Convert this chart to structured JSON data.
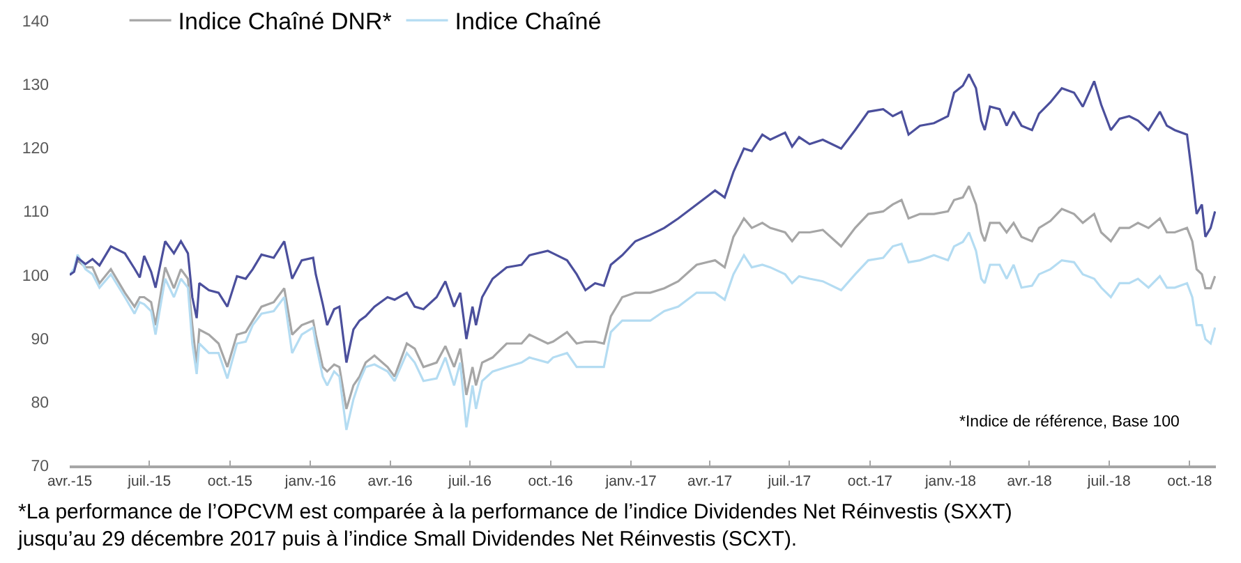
{
  "chart_data": {
    "type": "line",
    "x": [
      "2015-04-01",
      "2015-04-06",
      "2015-04-10",
      "2015-04-19",
      "2015-04-27",
      "2015-05-05",
      "2015-05-18",
      "2015-06-03",
      "2015-06-14",
      "2015-06-20",
      "2015-06-25",
      "2015-07-03",
      "2015-07-08",
      "2015-07-19",
      "2015-07-29",
      "2015-08-06",
      "2015-08-14",
      "2015-08-19",
      "2015-08-24",
      "2015-08-27",
      "2015-09-07",
      "2015-09-18",
      "2015-09-28",
      "2015-10-09",
      "2015-10-19",
      "2015-10-27",
      "2015-11-06",
      "2015-11-20",
      "2015-12-02",
      "2015-12-11",
      "2015-12-22",
      "2016-01-04",
      "2016-01-07",
      "2016-01-15",
      "2016-01-20",
      "2016-01-28",
      "2016-02-03",
      "2016-02-11",
      "2016-02-19",
      "2016-02-26",
      "2016-03-04",
      "2016-03-14",
      "2016-03-29",
      "2016-04-06",
      "2016-04-20",
      "2016-04-29",
      "2016-05-09",
      "2016-05-24",
      "2016-06-03",
      "2016-06-13",
      "2016-06-20",
      "2016-06-27",
      "2016-07-04",
      "2016-07-08",
      "2016-07-15",
      "2016-07-27",
      "2016-08-12",
      "2016-08-29",
      "2016-09-07",
      "2016-09-28",
      "2016-10-04",
      "2016-10-20",
      "2016-10-31",
      "2016-11-10",
      "2016-11-21",
      "2016-12-01",
      "2016-12-09",
      "2016-12-22",
      "2017-01-06",
      "2017-01-23",
      "2017-02-08",
      "2017-02-24",
      "2017-03-17",
      "2017-04-07",
      "2017-04-18",
      "2017-04-28",
      "2017-05-10",
      "2017-05-19",
      "2017-05-31",
      "2017-06-09",
      "2017-06-26",
      "2017-07-04",
      "2017-07-12",
      "2017-07-24",
      "2017-08-08",
      "2017-08-29",
      "2017-09-14",
      "2017-09-29",
      "2017-10-16",
      "2017-10-27",
      "2017-11-06",
      "2017-11-14",
      "2017-11-27",
      "2017-12-13",
      "2017-12-29",
      "2018-01-05",
      "2018-01-15",
      "2018-01-22",
      "2018-01-30",
      "2018-02-05",
      "2018-02-09",
      "2018-02-15",
      "2018-02-26",
      "2018-03-06",
      "2018-03-14",
      "2018-03-23",
      "2018-04-04",
      "2018-04-12",
      "2018-04-25",
      "2018-05-08",
      "2018-05-22",
      "2018-06-01",
      "2018-06-14",
      "2018-06-22",
      "2018-07-03",
      "2018-07-13",
      "2018-07-24",
      "2018-08-03",
      "2018-08-15",
      "2018-08-28",
      "2018-09-05",
      "2018-09-14",
      "2018-09-28",
      "2018-10-04",
      "2018-10-09",
      "2018-10-15",
      "2018-10-19",
      "2018-10-25",
      "2018-10-30"
    ],
    "series": [
      {
        "name": "Indice Chaîné DNR*",
        "color": "#a6a6a6",
        "values": [
          100,
          100.8,
          102.3,
          101.2,
          101.2,
          98.7,
          100.9,
          97.2,
          95,
          96.5,
          96.5,
          95.7,
          92.1,
          101.2,
          97.9,
          100.9,
          99.4,
          92.1,
          85.9,
          91.4,
          90.6,
          89.2,
          85.5,
          90.6,
          91,
          92.8,
          95,
          95.7,
          97.9,
          90.6,
          92.1,
          92.8,
          90.6,
          85.5,
          84.8,
          85.9,
          85.5,
          78.9,
          82.6,
          84,
          86.2,
          87.3,
          85.5,
          84,
          89.2,
          88.4,
          85.5,
          86.2,
          88.8,
          85.5,
          88.4,
          81.1,
          85.5,
          82.6,
          86.2,
          87,
          89.2,
          89.2,
          90.6,
          89.2,
          89.5,
          91,
          89.2,
          89.5,
          89.5,
          89.2,
          93.5,
          96.5,
          97.2,
          97.2,
          97.9,
          99,
          101.6,
          102.3,
          101.2,
          106,
          108.9,
          107.4,
          108.2,
          107.4,
          106.7,
          105.3,
          106.7,
          106.7,
          107.1,
          104.5,
          107.4,
          109.6,
          110,
          111.1,
          111.8,
          108.9,
          109.6,
          109.6,
          110,
          111.8,
          112.2,
          114,
          111.1,
          106.7,
          105.3,
          108.2,
          108.2,
          106.7,
          108.2,
          106,
          105.3,
          107.4,
          108.5,
          110.4,
          109.6,
          108.2,
          109.6,
          106.7,
          105.3,
          107.4,
          107.4,
          108.2,
          107.4,
          108.9,
          106.7,
          106.7,
          107.4,
          105.3,
          100.9,
          100.1,
          97.9,
          97.9,
          99.8
        ]
      },
      {
        "name": "Indice Chaîné",
        "color": "#b4dcf2",
        "values": [
          100,
          101,
          103.2,
          100.9,
          100.1,
          98,
          100.1,
          96.5,
          93.9,
          95.7,
          95.4,
          94.3,
          90.6,
          99.4,
          96.5,
          99.4,
          98,
          89.2,
          84.4,
          89.2,
          87.7,
          87.7,
          83.7,
          89.2,
          89.5,
          92.1,
          93.9,
          94.3,
          96.5,
          87.7,
          90.6,
          91.7,
          89.2,
          84,
          82.6,
          84.8,
          84,
          75.6,
          80.4,
          83.3,
          85.5,
          85.9,
          84.8,
          83.3,
          87.7,
          86.2,
          83.3,
          83.7,
          87,
          82.6,
          86.2,
          76,
          82.6,
          78.9,
          83.3,
          84.8,
          85.5,
          86.2,
          87,
          86.2,
          87,
          87.7,
          85.5,
          85.5,
          85.5,
          85.5,
          91,
          92.8,
          92.8,
          92.8,
          94.3,
          95,
          97.2,
          97.2,
          96.1,
          100.1,
          103.1,
          101.2,
          101.6,
          101.2,
          100.1,
          98.7,
          99.8,
          99.4,
          99,
          97.6,
          100.1,
          102.3,
          102.7,
          104.5,
          104.9,
          102,
          102.3,
          103.1,
          102.3,
          104.5,
          105.2,
          106.7,
          103.8,
          99.4,
          98.7,
          101.6,
          101.6,
          99.4,
          101.6,
          98,
          98.3,
          100.1,
          100.9,
          102.3,
          102,
          100.1,
          99.4,
          98,
          96.5,
          98.7,
          98.7,
          99.4,
          98,
          99.8,
          98,
          98,
          98.7,
          96.5,
          92.1,
          92.1,
          89.9,
          89.2,
          91.7
        ]
      },
      {
        "color": "#4b4f9c",
        "values": [
          100,
          100.5,
          102.7,
          101.7,
          102.5,
          101.5,
          104.5,
          103.4,
          101,
          99.6,
          103,
          100.5,
          98,
          105.3,
          103.4,
          105.3,
          103.4,
          96.5,
          93.2,
          98.7,
          97.6,
          97.2,
          95,
          99.8,
          99.4,
          100.9,
          103.2,
          102.7,
          105.3,
          99.4,
          102.3,
          102.7,
          100.1,
          95.4,
          92.1,
          94.6,
          95,
          86.2,
          91.4,
          92.8,
          93.5,
          95,
          96.5,
          96.1,
          97.2,
          95,
          94.6,
          96.5,
          99,
          95,
          97.2,
          89.9,
          95,
          92.1,
          96.5,
          99.4,
          101.2,
          101.6,
          103.1,
          103.8,
          103.4,
          102.3,
          100.1,
          97.6,
          98.7,
          98.3,
          101.6,
          103.1,
          105.3,
          106.3,
          107.4,
          108.9,
          111.1,
          113.3,
          112.2,
          116.2,
          119.9,
          119.5,
          122.1,
          121.3,
          122.4,
          120.2,
          121.7,
          120.6,
          121.3,
          119.9,
          122.8,
          125.7,
          126.1,
          125,
          125.7,
          122.1,
          123.5,
          123.9,
          125,
          128.7,
          129.8,
          131.6,
          129.4,
          124.3,
          122.8,
          126.5,
          126.1,
          123.5,
          125.7,
          123.5,
          122.8,
          125.4,
          127.2,
          129.4,
          128.7,
          126.5,
          130.5,
          126.8,
          122.8,
          124.6,
          125,
          124.3,
          122.8,
          125.7,
          123.5,
          122.8,
          122.1,
          115.5,
          109.6,
          111.1,
          106,
          107.4,
          110
        ]
      }
    ],
    "xlim": [
      "2015-04-01",
      "2018-10-31"
    ],
    "xticks": [
      {
        "value": "2015-04-01",
        "label": "avr.-15"
      },
      {
        "value": "2015-07-01",
        "label": "juil.-15"
      },
      {
        "value": "2015-10-01",
        "label": "oct.-15"
      },
      {
        "value": "2016-01-01",
        "label": "janv.-16"
      },
      {
        "value": "2016-04-01",
        "label": "avr.-16"
      },
      {
        "value": "2016-07-01",
        "label": "juil.-16"
      },
      {
        "value": "2016-10-01",
        "label": "oct.-16"
      },
      {
        "value": "2017-01-01",
        "label": "janv.-17"
      },
      {
        "value": "2017-04-01",
        "label": "avr.-17"
      },
      {
        "value": "2017-07-01",
        "label": "juil.-17"
      },
      {
        "value": "2017-10-01",
        "label": "oct.-17"
      },
      {
        "value": "2018-01-01",
        "label": "janv.-18"
      },
      {
        "value": "2018-04-01",
        "label": "avr.-18"
      },
      {
        "value": "2018-07-01",
        "label": "juil.-18"
      },
      {
        "value": "2018-10-01",
        "label": "oct.-18"
      }
    ],
    "ylim": [
      70,
      140
    ],
    "yticks": [
      70,
      80,
      90,
      100,
      110,
      120,
      130,
      140
    ],
    "legend": "top",
    "line_style": "solid",
    "annotations": [
      "*Indice de référence, Base 100",
      "*La performance de l’OPCVM est comparée à la performance de l’indice Dividendes Net Réinvestis (SXXT) jusqu’au 29 décembre 2017 puis à l’indice Small Dividendes Net Réinvestis (SCXT)."
    ]
  }
}
